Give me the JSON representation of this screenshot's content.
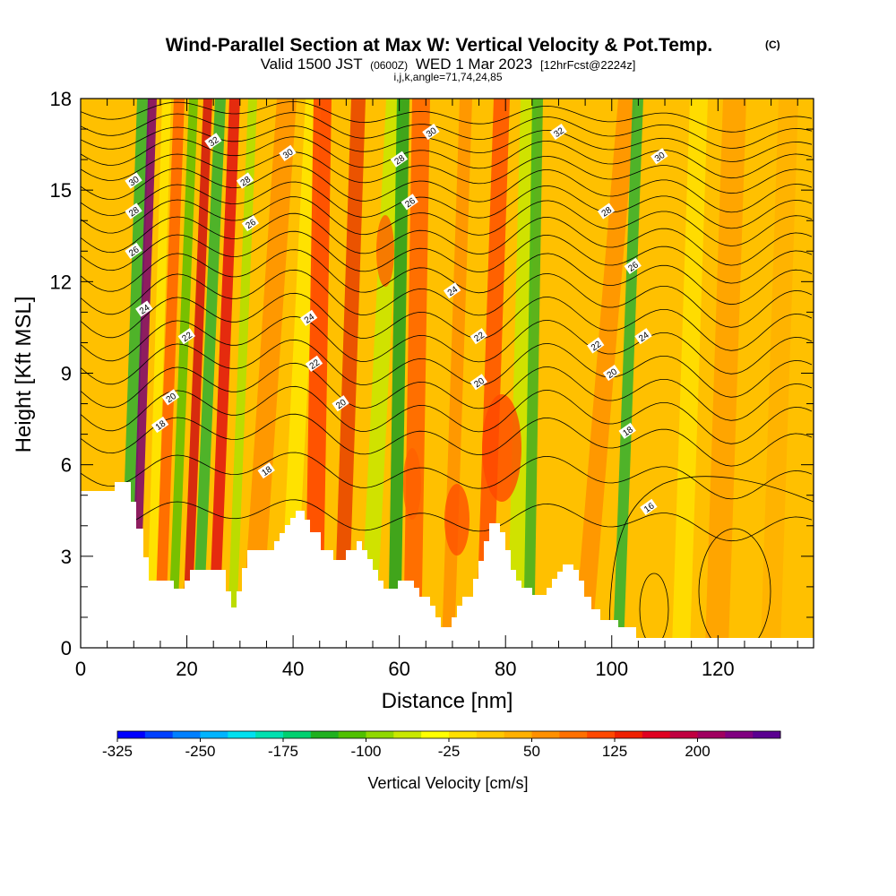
{
  "chart_data": {
    "type": "heatmap",
    "title": "Wind-Parallel Section at Max W: Vertical Velocity & Pot.Temp.",
    "title_tag": "(C)",
    "subtitle_parts": [
      "Valid 1500 JST",
      "(0600Z)",
      "WED 1 Mar 2023",
      "[12hrFcst@2224z]"
    ],
    "subtitle2": "i,j,k,angle=71,74,24,85",
    "xlabel": "Distance [nm]",
    "ylabel": "Height [Kft MSL]",
    "xlim": [
      0,
      138
    ],
    "ylim": [
      0,
      18
    ],
    "x_ticks": [
      0,
      20,
      40,
      60,
      80,
      100,
      120
    ],
    "x_tick_labels": [
      "0",
      "20",
      "40",
      "60",
      "80",
      "100",
      "120"
    ],
    "y_ticks": [
      0,
      3,
      6,
      9,
      12,
      15,
      18
    ],
    "y_tick_labels": [
      "0",
      "3",
      "6",
      "9",
      "12",
      "15",
      "18"
    ],
    "colorbar": {
      "title": "Vertical Velocity [cm/s]",
      "labels": [
        "-325",
        "-250",
        "-175",
        "-100",
        "-25",
        "50",
        "125",
        "200"
      ],
      "colors": [
        "#0000ff",
        "#0040ff",
        "#0080ff",
        "#00b4ff",
        "#00e0f0",
        "#00e0b0",
        "#00d070",
        "#20b020",
        "#50c000",
        "#90d800",
        "#c8e800",
        "#ffff00",
        "#ffe000",
        "#ffc800",
        "#ffb000",
        "#ff9000",
        "#ff7000",
        "#ff4800",
        "#f02000",
        "#e00020",
        "#c00040",
        "#a00060",
        "#800080",
        "#5a0090"
      ]
    },
    "contour_field": "Potential Temperature",
    "contour_labels": [
      {
        "x": 10,
        "y": 15.3,
        "text": "30"
      },
      {
        "x": 10,
        "y": 14.3,
        "text": "28"
      },
      {
        "x": 10,
        "y": 13.0,
        "text": "26"
      },
      {
        "x": 12,
        "y": 11.1,
        "text": "24"
      },
      {
        "x": 20,
        "y": 10.2,
        "text": "22"
      },
      {
        "x": 17,
        "y": 8.2,
        "text": "20"
      },
      {
        "x": 15,
        "y": 7.3,
        "text": "18"
      },
      {
        "x": 25,
        "y": 16.6,
        "text": "32"
      },
      {
        "x": 31,
        "y": 15.3,
        "text": "28"
      },
      {
        "x": 32,
        "y": 13.9,
        "text": "26"
      },
      {
        "x": 39,
        "y": 16.2,
        "text": "30"
      },
      {
        "x": 43,
        "y": 10.8,
        "text": "24"
      },
      {
        "x": 44,
        "y": 9.3,
        "text": "22"
      },
      {
        "x": 49,
        "y": 8.0,
        "text": "20"
      },
      {
        "x": 35,
        "y": 5.8,
        "text": "18"
      },
      {
        "x": 60,
        "y": 16.0,
        "text": "28"
      },
      {
        "x": 62,
        "y": 14.6,
        "text": "26"
      },
      {
        "x": 66,
        "y": 16.9,
        "text": "30"
      },
      {
        "x": 70,
        "y": 11.7,
        "text": "24"
      },
      {
        "x": 75,
        "y": 10.2,
        "text": "22"
      },
      {
        "x": 75,
        "y": 8.7,
        "text": "20"
      },
      {
        "x": 90,
        "y": 16.9,
        "text": "32"
      },
      {
        "x": 109,
        "y": 16.1,
        "text": "30"
      },
      {
        "x": 99,
        "y": 14.3,
        "text": "28"
      },
      {
        "x": 104,
        "y": 12.5,
        "text": "26"
      },
      {
        "x": 106,
        "y": 10.2,
        "text": "24"
      },
      {
        "x": 97,
        "y": 9.9,
        "text": "22"
      },
      {
        "x": 100,
        "y": 9.0,
        "text": "20"
      },
      {
        "x": 103,
        "y": 7.1,
        "text": "18"
      },
      {
        "x": 107,
        "y": 4.6,
        "text": "16"
      }
    ]
  }
}
